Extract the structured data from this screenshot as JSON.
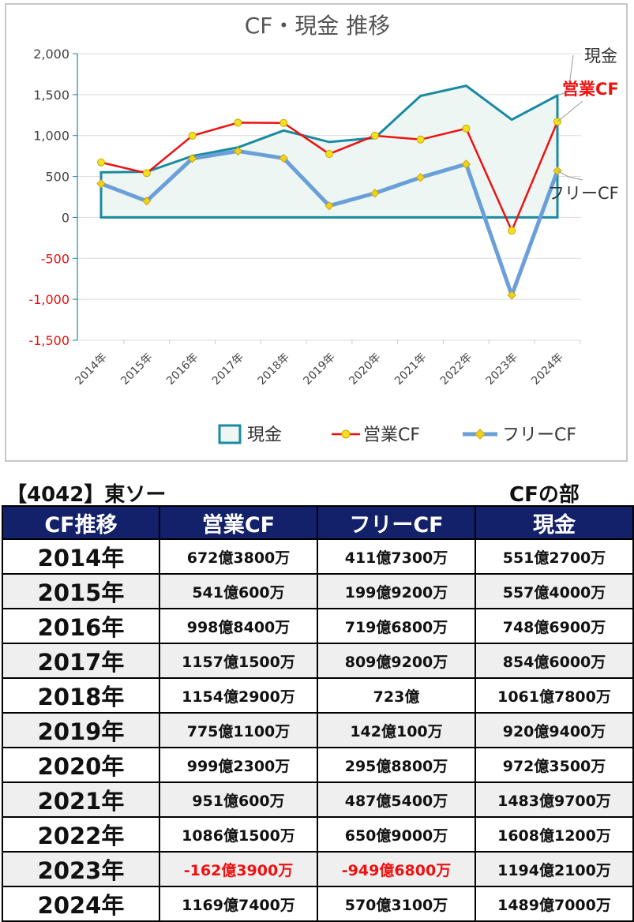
{
  "chart_data": {
    "type": "line",
    "title": "CF・現金 推移",
    "categories": [
      "2014年",
      "2015年",
      "2016年",
      "2017年",
      "2018年",
      "2019年",
      "2020年",
      "2021年",
      "2022年",
      "2023年",
      "2024年"
    ],
    "ylim": [
      -1500,
      2000
    ],
    "yticks": [
      "2,000",
      "1,500",
      "1,000",
      "500",
      "0",
      "-500",
      "-1,000",
      "-1,500"
    ],
    "ytick_values": [
      2000,
      1500,
      1000,
      500,
      0,
      -500,
      -1000,
      -1500
    ],
    "series": [
      {
        "name": "現金",
        "style": "area",
        "color": "#1a8aa0",
        "values": [
          551,
          557,
          749,
          855,
          1062,
          921,
          972,
          1484,
          1608,
          1194,
          1490
        ]
      },
      {
        "name": "営業CF",
        "style": "line",
        "color": "#ee1111",
        "values": [
          672,
          541,
          998,
          1157,
          1154,
          775,
          999,
          951,
          1086,
          -162,
          1170
        ]
      },
      {
        "name": "フリーCF",
        "style": "line",
        "color": "#6a9fd8",
        "values": [
          412,
          200,
          720,
          810,
          723,
          142,
          296,
          488,
          651,
          -950,
          570
        ]
      }
    ],
    "annotations": [
      "現金",
      "営業CF",
      "フリーCF"
    ],
    "legend": "bottom",
    "grid": true
  },
  "company_title": "【4042】東ソー",
  "section_title": "CFの部",
  "table": {
    "headers": [
      "CF推移",
      "営業CF",
      "フリーCF",
      "現金"
    ],
    "rows": [
      [
        "2014年",
        "672億3800万",
        "411億7300万",
        "551億2700万"
      ],
      [
        "2015年",
        "541億600万",
        "199億9200万",
        "557億4000万"
      ],
      [
        "2016年",
        "998億8400万",
        "719億6800万",
        "748億6900万"
      ],
      [
        "2017年",
        "1157億1500万",
        "809億9200万",
        "854億6000万"
      ],
      [
        "2018年",
        "1154億2900万",
        "723億",
        "1061億7800万"
      ],
      [
        "2019年",
        "775億1100万",
        "142億100万",
        "920億9400万"
      ],
      [
        "2020年",
        "999億2300万",
        "295億8800万",
        "972億3500万"
      ],
      [
        "2021年",
        "951億600万",
        "487億5400万",
        "1483億9700万"
      ],
      [
        "2022年",
        "1086億1500万",
        "650億9000万",
        "1608億1200万"
      ],
      [
        "2023年",
        "-162億3900万",
        "-949億6800万",
        "1194億2100万"
      ],
      [
        "2024年",
        "1169億7400万",
        "570億3100万",
        "1489億7000万"
      ]
    ]
  }
}
